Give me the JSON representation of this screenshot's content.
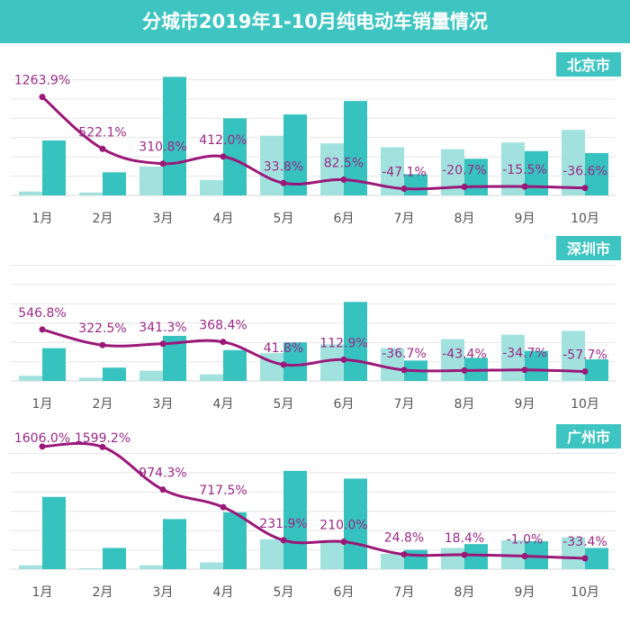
{
  "colors": {
    "title_bg": "#3ec5c1",
    "bar_light": "#a2e2de",
    "bar_dark": "#36c2be",
    "line": "#9b1878",
    "label": "#9b2a86",
    "grid": "#e6e6e6",
    "badge": "#3ec5c1"
  },
  "chart_data": {
    "title": "分城市2019年1-10月纯电动车销量情况",
    "panels": [
      {
        "city": "北京市",
        "type": "bar+line",
        "categories": [
          "1月",
          "2月",
          "3月",
          "4月",
          "5月",
          "6月",
          "7月",
          "8月",
          "9月",
          "10月"
        ],
        "series": [
          {
            "type": "bar",
            "color": "light",
            "values": [
              0.2,
              0.15,
              1.5,
              0.8,
              3.1,
              2.7,
              2.5,
              2.4,
              2.75,
              3.4
            ]
          },
          {
            "type": "bar",
            "color": "dark",
            "values": [
              2.85,
              1.2,
              6.15,
              4.0,
              4.2,
              4.9,
              1.1,
              1.9,
              2.3,
              2.2
            ]
          },
          {
            "type": "line",
            "values": [
              1263.9,
              522.1,
              310.8,
              412.0,
              33.8,
              82.5,
              -47.1,
              -20.7,
              -15.5,
              -36.6
            ],
            "labels": [
              "1263.9%",
              "522.1%",
              "310.8%",
              "412.0%",
              "33.8%",
              "82.5%",
              "-47.1%",
              "-20.7%",
              "-15.5%",
              "-36.6%"
            ]
          }
        ],
        "ylim": [
          0,
          6.3
        ],
        "y2lim": [
          -143,
          1592
        ],
        "grid": true
      },
      {
        "city": "深圳市",
        "type": "bar+line",
        "categories": [
          "1月",
          "2月",
          "3月",
          "4月",
          "5月",
          "6月",
          "7月",
          "8月",
          "9月",
          "10月"
        ],
        "series": [
          {
            "type": "bar",
            "color": "light",
            "values": [
              0.27,
              0.17,
              0.53,
              0.34,
              1.44,
              1.9,
              1.7,
              2.17,
              2.4,
              2.6
            ]
          },
          {
            "type": "bar",
            "color": "dark",
            "values": [
              1.7,
              0.69,
              2.34,
              1.6,
              2.0,
              4.1,
              1.06,
              1.2,
              1.56,
              1.12
            ]
          },
          {
            "type": "line",
            "values": [
              546.8,
              322.5,
              341.3,
              368.4,
              41.8,
              112.9,
              -36.7,
              -43.4,
              -34.7,
              -57.7
            ],
            "labels": [
              "546.8%",
              "322.5%",
              "341.3%",
              "368.4%",
              "41.8%",
              "112.9%",
              "-36.7%",
              "-43.4%",
              "-34.7%",
              "-57.7%"
            ]
          }
        ],
        "ylim": [
          0,
          6.3
        ],
        "y2lim": [
          -194,
          1556
        ],
        "grid": true
      },
      {
        "city": "广州市",
        "type": "bar+line",
        "categories": [
          "1月",
          "2月",
          "3月",
          "4月",
          "5月",
          "6月",
          "7月",
          "8月",
          "9月",
          "10月"
        ],
        "series": [
          {
            "type": "bar",
            "color": "light",
            "values": [
              0.2,
              0.05,
              0.2,
              0.35,
              1.55,
              1.5,
              0.8,
              1.1,
              1.5,
              1.65
            ]
          },
          {
            "type": "bar",
            "color": "dark",
            "values": [
              3.75,
              1.1,
              2.6,
              2.95,
              5.1,
              4.7,
              1.0,
              1.3,
              1.45,
              1.1
            ]
          },
          {
            "type": "line",
            "values": [
              1606.0,
              1599.2,
              974.3,
              717.5,
              231.9,
              210.0,
              24.8,
              18.4,
              -1.0,
              -33.4
            ],
            "labels": [
              "1606.0%",
              "1599.2%",
              "974.3%",
              "717.5%",
              "231.9%",
              "210.0%",
              "24.8%",
              "18.4%",
              "-1.0%",
              "-33.4%"
            ]
          }
        ],
        "ylim": [
          0,
          6.3
        ],
        "y2lim": [
          -192,
          1588
        ],
        "grid": true
      }
    ]
  }
}
